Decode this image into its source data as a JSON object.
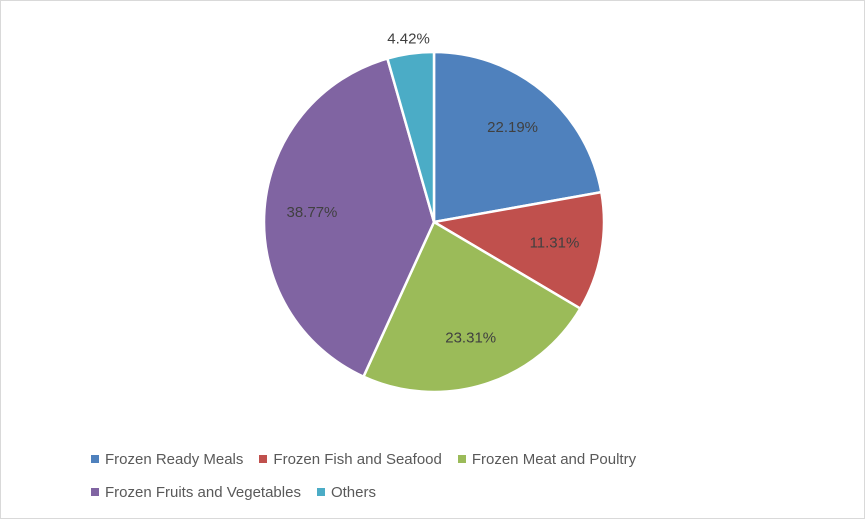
{
  "chart_data": {
    "type": "pie",
    "title": "",
    "slices": [
      {
        "label": "Frozen Ready Meals",
        "value": 22.19,
        "value_label": "22.19%",
        "color": "#4F81BD"
      },
      {
        "label": "Frozen Fish and Seafood",
        "value": 11.31,
        "value_label": "11.31%",
        "color": "#C0504D"
      },
      {
        "label": "Frozen Meat and Poultry",
        "value": 23.31,
        "value_label": "23.31%",
        "color": "#9BBB59"
      },
      {
        "label": "Frozen Fruits and Vegetables",
        "value": 38.77,
        "value_label": "38.77%",
        "color": "#8064A2"
      },
      {
        "label": "Others",
        "value": 4.42,
        "value_label": "4.42%",
        "color": "#4BACC6"
      }
    ],
    "legend_position": "bottom",
    "start_angle": "12 o'clock",
    "direction": "clockwise"
  },
  "legend": {
    "items": [
      {
        "label": "Frozen Ready Meals",
        "color": "#4F81BD"
      },
      {
        "label": "Frozen Fish and Seafood",
        "color": "#C0504D"
      },
      {
        "label": "Frozen Meat and Poultry",
        "color": "#9BBB59"
      },
      {
        "label": "Frozen Fruits and Vegetables",
        "color": "#8064A2"
      },
      {
        "label": "Others",
        "color": "#4BACC6"
      }
    ]
  }
}
